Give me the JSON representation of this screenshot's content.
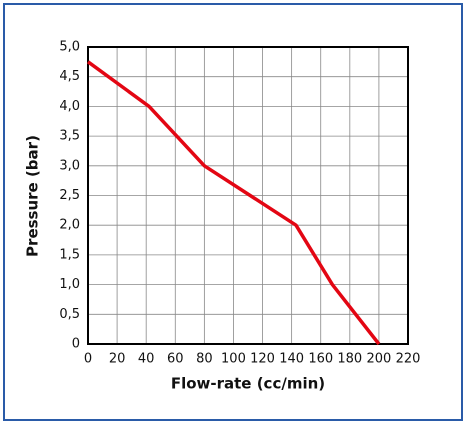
{
  "chart_data": {
    "type": "line",
    "xlabel": "Flow-rate (cc/min)",
    "ylabel": "Pressure (bar)",
    "x": [
      0,
      42,
      80,
      143,
      168,
      200
    ],
    "values": [
      4.75,
      4.0,
      3.0,
      2.0,
      1.0,
      0
    ],
    "color": "#e30613",
    "xlim": [
      0,
      220
    ],
    "xticks": [
      0,
      20,
      40,
      60,
      80,
      100,
      120,
      140,
      160,
      180,
      200,
      220
    ],
    "ylim": [
      0,
      5
    ],
    "yticks": [
      0,
      {
        "value": 0.5,
        "label": "0,5"
      },
      {
        "value": 1,
        "label": "1,0"
      },
      {
        "value": 1.5,
        "label": "1,5"
      },
      {
        "value": 2,
        "label": "2,0"
      },
      {
        "value": 2.5,
        "label": "2,5"
      },
      {
        "value": 3,
        "label": "3,0"
      },
      {
        "value": 3.5,
        "label": "3,5"
      },
      {
        "value": 4,
        "label": "4,0"
      },
      {
        "value": 4.5,
        "label": "4,5"
      },
      {
        "value": 5,
        "label": "5,0"
      }
    ],
    "grid": true
  }
}
